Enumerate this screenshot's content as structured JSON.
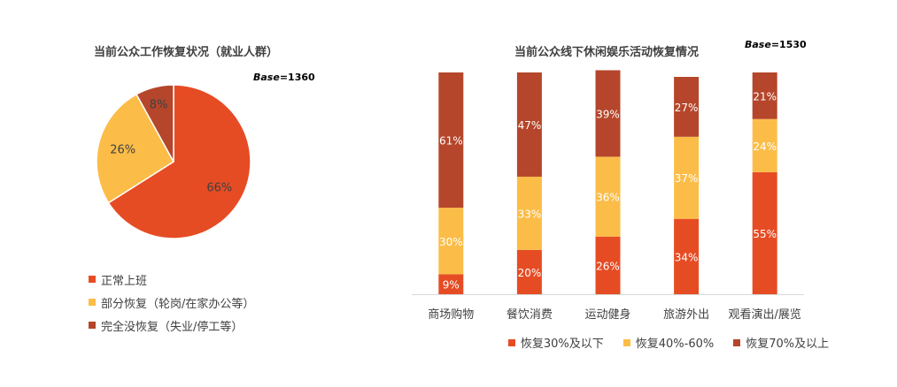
{
  "colors": {
    "orange_red": "#E64C24",
    "yellow": "#FBBD48",
    "brown": "#B5462B",
    "axis": "#D9D9D9",
    "label_text": "#404040",
    "label_on_bar": "#FFFFFF"
  },
  "chart_data": [
    {
      "type": "pie",
      "title": "当前公众工作恢复状况（就业人群）",
      "base_prefix": "Base",
      "base_value": "=1360",
      "slices": [
        {
          "name": "正常上班",
          "value": 66,
          "label": "66%",
          "color": "#E64C24"
        },
        {
          "name": "部分恢复（轮岗/在家办公等）",
          "value": 26,
          "label": "26%",
          "color": "#FBBD48"
        },
        {
          "name": "完全没恢复（失业/停工等）",
          "value": 8,
          "label": "8%",
          "color": "#B5462B"
        }
      ],
      "legend_position": "bottom-left"
    },
    {
      "type": "bar",
      "stacked": true,
      "percent_stacked": true,
      "title": "当前公众线下休闲娱乐活动恢复情况",
      "base_prefix": "Base",
      "base_value": "=1530",
      "categories": [
        "商场购物",
        "餐饮消费",
        "运动健身",
        "旅游外出",
        "观看演出/展览"
      ],
      "series": [
        {
          "name": "恢复30%及以下",
          "color": "#E64C24",
          "values": [
            9,
            20,
            26,
            34,
            55
          ],
          "labels": [
            "9%",
            "20%",
            "26%",
            "34%",
            "55%"
          ]
        },
        {
          "name": "恢复40%-60%",
          "color": "#FBBD48",
          "values": [
            30,
            33,
            36,
            37,
            24
          ],
          "labels": [
            "30%",
            "33%",
            "36%",
            "37%",
            "24%"
          ]
        },
        {
          "name": "恢复70%及以上",
          "color": "#B5462B",
          "values": [
            61,
            47,
            39,
            27,
            21
          ],
          "labels": [
            "61%",
            "47%",
            "39%",
            "27%",
            "21%"
          ]
        }
      ],
      "ylim": [
        0,
        100
      ],
      "grid": false,
      "legend_position": "bottom"
    }
  ]
}
